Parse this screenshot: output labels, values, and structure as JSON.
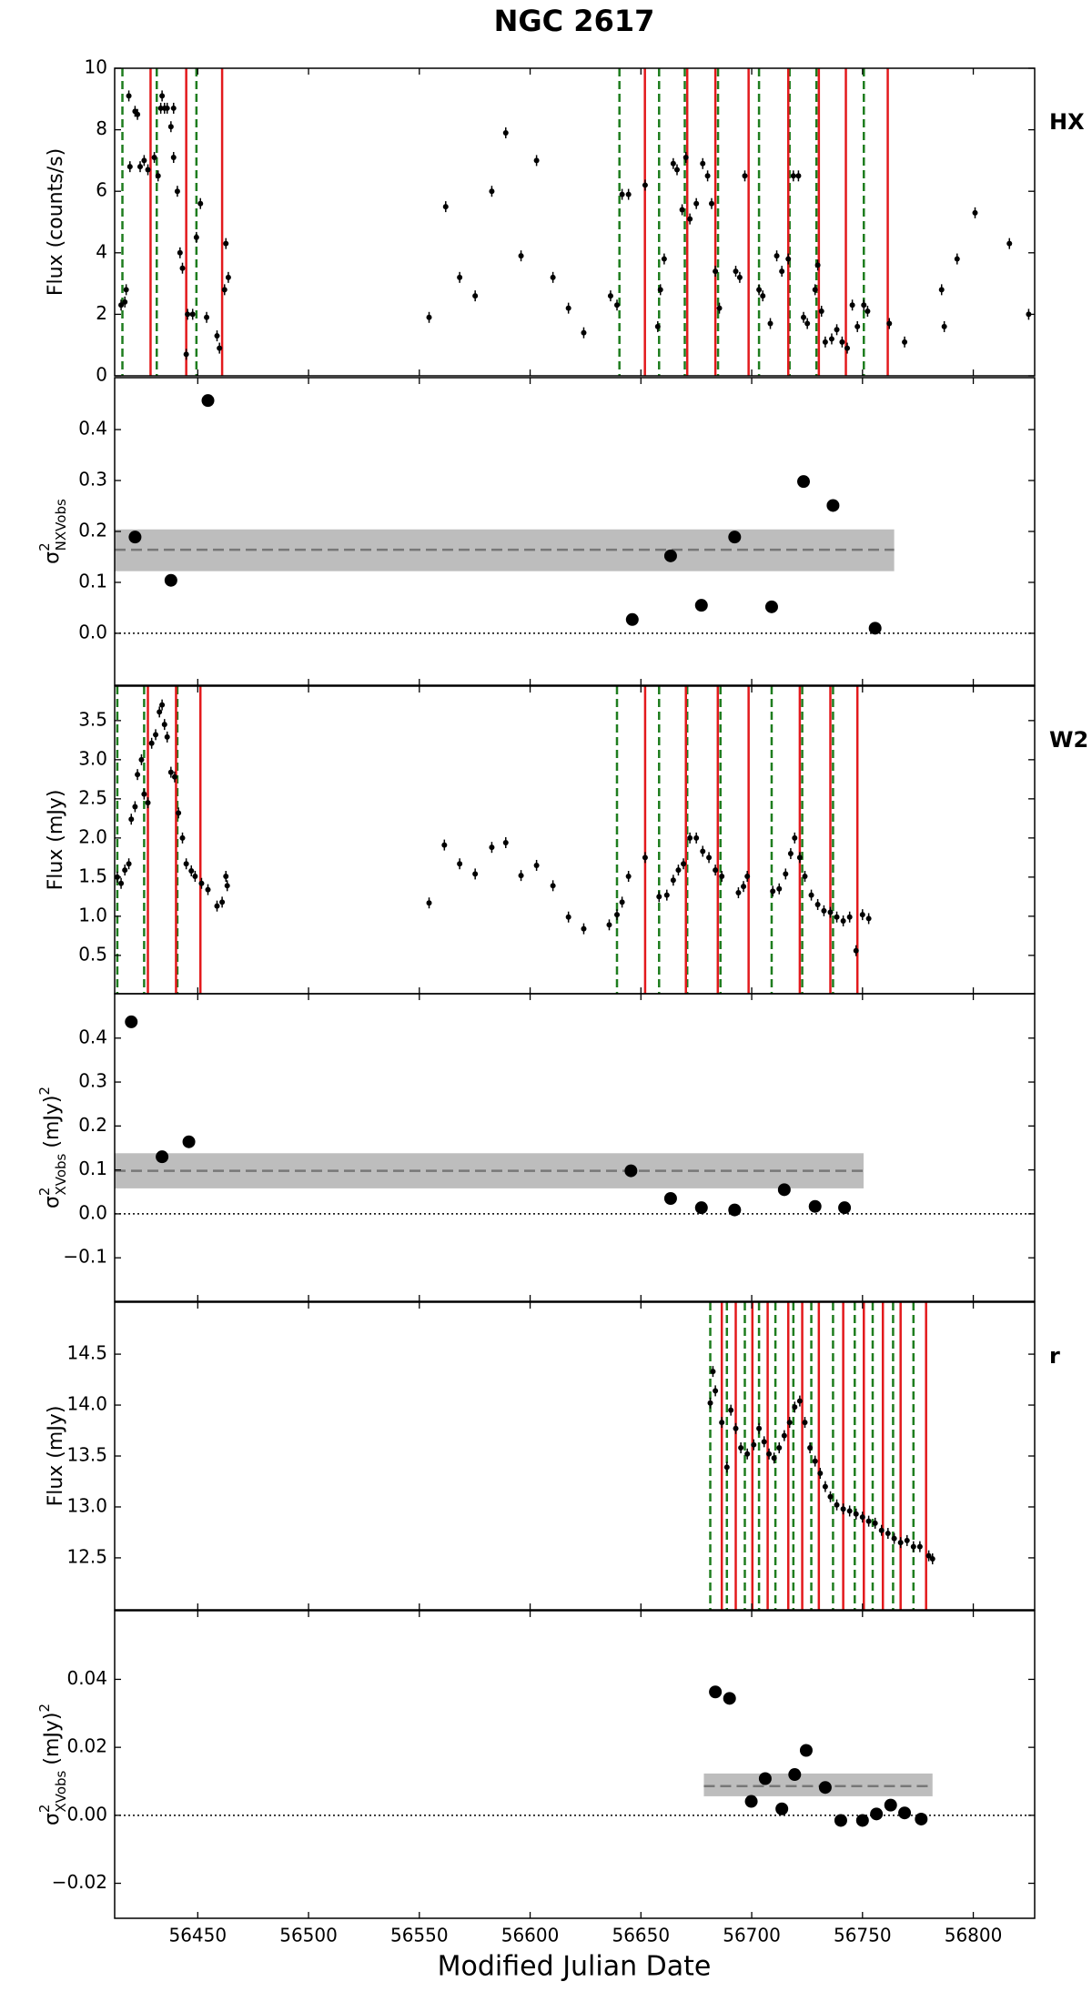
{
  "chart_data": [
    {
      "type": "scatter",
      "title": "NGC 2617",
      "label": "HX",
      "ylabel": "Flux (counts/s)",
      "xlim": [
        56412.5,
        56827.7
      ],
      "ylim": [
        0,
        10
      ],
      "yticks": [
        0,
        2,
        4,
        6,
        8,
        10
      ],
      "x": [
        56415.4,
        56417.1,
        56417.7,
        56419.4,
        56418.9,
        56421.7,
        56422.8,
        56424,
        56425.8,
        56427.5,
        56430.4,
        56432.1,
        56433.3,
        56433.9,
        56435,
        56436.2,
        56437.9,
        56439.1,
        56439.1,
        56440.8,
        56442,
        56443.1,
        56444.8,
        56445.4,
        56447.7,
        56449.4,
        56451.2,
        56454,
        56458.7,
        56459.8,
        56462.1,
        56462.7,
        56463.8,
        56554.4,
        56561.9,
        56568.2,
        56575.2,
        56582.7,
        56589,
        56595.9,
        56602.9,
        56610.3,
        56617.3,
        56624.2,
        56636.3,
        56639.2,
        56641.5,
        56644.4,
        56651.9,
        56657.6,
        56658.8,
        56660.5,
        56664.6,
        56666.3,
        56668.6,
        56670.3,
        56672.1,
        56675,
        56677.9,
        56680.1,
        56681.9,
        56683.6,
        56685.4,
        56692.8,
        56694.6,
        56696.9,
        56703.3,
        56705,
        56708.4,
        56711.3,
        56713.6,
        56716.5,
        56718.8,
        56721.1,
        56723.4,
        56725.1,
        56728.6,
        56729.8,
        56731.5,
        56733.2,
        56736.1,
        56738.4,
        56740.8,
        56743.1,
        56745.4,
        56747.7,
        56750.6,
        56752.3,
        56762.1,
        56769,
        56785.7,
        56786.9,
        56792.7,
        56800.8,
        56816.3,
        56825
      ],
      "values": [
        2.3,
        2.4,
        2.8,
        6.8,
        9.1,
        8.6,
        8.5,
        6.8,
        7.0,
        6.7,
        7.1,
        6.5,
        8.7,
        9.1,
        8.7,
        8.7,
        8.1,
        8.7,
        7.1,
        6.0,
        4.0,
        3.5,
        0.7,
        2.0,
        2.0,
        4.5,
        5.6,
        1.9,
        1.3,
        0.9,
        2.8,
        4.3,
        3.2,
        1.9,
        5.5,
        3.2,
        2.6,
        6.0,
        7.9,
        3.9,
        7.0,
        3.2,
        2.2,
        1.4,
        2.6,
        2.3,
        5.9,
        5.9,
        6.2,
        1.6,
        2.8,
        3.8,
        6.9,
        6.7,
        5.4,
        7.1,
        5.1,
        5.6,
        6.9,
        6.5,
        5.6,
        3.4,
        2.2,
        3.4,
        3.2,
        6.5,
        2.8,
        2.6,
        1.7,
        3.9,
        3.4,
        3.8,
        6.5,
        6.5,
        1.9,
        1.7,
        2.8,
        3.6,
        2.1,
        1.1,
        1.2,
        1.5,
        1.1,
        0.9,
        2.3,
        1.6,
        2.3,
        2.1,
        1.7,
        1.1,
        2.8,
        1.6,
        3.8,
        5.3,
        4.3,
        2.0
      ],
      "color": "#000000",
      "vlines": [
        {
          "color": "#1e7d1e",
          "dashed": true,
          "x": [
            56416.0,
            56431.5,
            56449.4,
            56640.3,
            56658.2,
            56669.8,
            56684.8,
            56703.3,
            56717.1,
            56729.2,
            56750.6
          ]
        },
        {
          "color": "#e3191c",
          "dashed": false,
          "x": [
            56428.7,
            56444.8,
            56461.0,
            56651.8,
            56670.9,
            56683.6,
            56698.6,
            56716.5,
            56730.3,
            56742.5,
            56761.4
          ]
        }
      ]
    },
    {
      "type": "scatter",
      "ylabel": {
        "symbol": "σ",
        "sup": "2",
        "sub": "NXVobs"
      },
      "xlim": [
        56412.5,
        56827.7
      ],
      "ylim": [
        -0.102,
        0.502
      ],
      "yticks": [
        {
          "value": 0,
          "label": "0.0"
        },
        0.1,
        0.2,
        0.3,
        0.4
      ],
      "x": [
        56421.7,
        56437.9,
        56454.6,
        56646.1,
        56663.4,
        56677.3,
        56692.3,
        56709,
        56723.4,
        56736.7,
        56755.7
      ],
      "values": [
        0.189,
        0.104,
        0.457,
        0.027,
        0.152,
        0.055,
        0.189,
        0.052,
        0.298,
        0.251,
        0.01
      ],
      "color": "#000000",
      "reference_line": 0,
      "band": {
        "center": 0.164,
        "lower": 0.122,
        "upper": 0.204,
        "xrange": [
          56412.5,
          56764.3
        ],
        "color": "#bdbdbd"
      }
    },
    {
      "type": "scatter",
      "label": "W2",
      "ylabel": "Flux (mJy)",
      "xlim": [
        56412.5,
        56827.7
      ],
      "ylim": [
        0.01,
        3.94
      ],
      "yticks": [
        0.5,
        {
          "value": 1,
          "label": "1.0"
        },
        1.5,
        {
          "value": 2,
          "label": "2.0"
        },
        2.5,
        {
          "value": 3,
          "label": "3.0"
        },
        3.5
      ],
      "x": [
        56413.7,
        56415.4,
        56417.1,
        56418.9,
        56420,
        56421.7,
        56422.8,
        56424.6,
        56425.8,
        56427.5,
        56429.2,
        56431,
        56432.7,
        56433.9,
        56435,
        56436.2,
        56437.9,
        56439.6,
        56441.3,
        56443.1,
        56444.8,
        56447.1,
        56448.8,
        56451.7,
        56454.6,
        56458.7,
        56461,
        56462.7,
        56463.3,
        56554.4,
        56561.3,
        56568.2,
        56575.2,
        56582.7,
        56589,
        56595.9,
        56602.9,
        56610.3,
        56617.3,
        56624.2,
        56635.7,
        56639.2,
        56641.5,
        56644.4,
        56651.9,
        56658.2,
        56661.7,
        56664.6,
        56666.9,
        56669.2,
        56672.1,
        56675,
        56677.9,
        56680.7,
        56683.6,
        56686.5,
        56694,
        56696.3,
        56698,
        56709.5,
        56712.4,
        56715.3,
        56717.6,
        56719.4,
        56721.7,
        56724,
        56726.9,
        56729.8,
        56732.6,
        56735.5,
        56738.4,
        56741.3,
        56744.2,
        56747.1,
        56750,
        56752.8
      ],
      "values": [
        1.5,
        1.42,
        1.59,
        1.67,
        2.24,
        2.4,
        2.81,
        3.0,
        2.56,
        2.45,
        3.21,
        3.32,
        3.61,
        3.7,
        3.45,
        3.29,
        2.84,
        2.78,
        2.32,
        2.0,
        1.67,
        1.58,
        1.51,
        1.42,
        1.34,
        1.13,
        1.18,
        1.51,
        1.39,
        1.17,
        1.91,
        1.67,
        1.54,
        1.88,
        1.94,
        1.52,
        1.65,
        1.39,
        0.99,
        0.84,
        0.89,
        1.02,
        1.18,
        1.51,
        1.75,
        1.25,
        1.27,
        1.46,
        1.59,
        1.67,
        2.0,
        2.0,
        1.83,
        1.75,
        1.59,
        1.51,
        1.3,
        1.38,
        1.51,
        1.32,
        1.35,
        1.54,
        1.8,
        2.0,
        1.75,
        1.51,
        1.27,
        1.15,
        1.07,
        1.05,
        0.99,
        0.94,
        0.99,
        0.56,
        1.02,
        0.97
      ],
      "color": "#000000",
      "vlines": [
        {
          "color": "#1e7d1e",
          "dashed": true,
          "x": [
            56413.7,
            56425.8,
            56440.8,
            56639.2,
            56658.2,
            56670.9,
            56685.9,
            56709,
            56722.8,
            56736.7
          ]
        },
        {
          "color": "#e3191c",
          "dashed": false,
          "x": [
            56427.5,
            56440.2,
            56451.2,
            56651.9,
            56670.3,
            56684.7,
            56698.6,
            56721.7,
            56735.5,
            56747.7
          ]
        }
      ]
    },
    {
      "type": "scatter",
      "ylabel": {
        "symbol": "σ",
        "sup": "2",
        "sub": "XVobs",
        "unit": "(mJy)",
        "unit_sup": "2"
      },
      "xlim": [
        56412.5,
        56827.7
      ],
      "ylim": [
        -0.199,
        0.501
      ],
      "yticks": [
        {
          "value": -0.1,
          "label": "−0.1"
        },
        {
          "value": 0,
          "label": "0.0"
        },
        0.1,
        0.2,
        0.3,
        0.4
      ],
      "x": [
        56420,
        56433.9,
        56446,
        56645.5,
        56663.4,
        56677.3,
        56692.3,
        56714.7,
        56728.6,
        56741.9
      ],
      "values": [
        0.437,
        0.13,
        0.164,
        0.098,
        0.035,
        0.014,
        0.009,
        0.055,
        0.017,
        0.014
      ],
      "color": "#000000",
      "reference_line": 0,
      "band": {
        "center": 0.098,
        "lower": 0.058,
        "upper": 0.138,
        "xrange": [
          56412.5,
          56750.5
        ],
        "color": "#bdbdbd"
      }
    },
    {
      "type": "scatter",
      "label": "r",
      "ylabel": "Flux (mJy)",
      "xlim": [
        56412.5,
        56827.7
      ],
      "ylim": [
        11.99,
        15.01
      ],
      "yticks": [
        12.5,
        {
          "value": 13,
          "label": "13.0"
        },
        13.5,
        {
          "value": 14,
          "label": "14.0"
        },
        14.5
      ],
      "x": [
        56681.3,
        56682.5,
        56683.6,
        56686.5,
        56688.8,
        56690.6,
        56692.8,
        56695.1,
        56698,
        56700.9,
        56703.3,
        56705.6,
        56707.8,
        56710.1,
        56712.4,
        56714.7,
        56717.1,
        56719.4,
        56721.7,
        56724,
        56726.3,
        56728.6,
        56730.9,
        56733.2,
        56735.5,
        56738.4,
        56741.3,
        56744.2,
        56747.1,
        56750,
        56752.8,
        56755.7,
        56758.6,
        56761.5,
        56764.3,
        56767.2,
        56770.1,
        56773,
        56775.9,
        56779.9,
        56781.6
      ],
      "values": [
        14.02,
        14.33,
        14.14,
        13.83,
        13.39,
        13.95,
        13.77,
        13.58,
        13.52,
        13.61,
        13.77,
        13.64,
        13.52,
        13.48,
        13.58,
        13.7,
        13.83,
        13.98,
        14.04,
        13.83,
        13.58,
        13.45,
        13.33,
        13.2,
        13.1,
        13.02,
        12.98,
        12.96,
        12.93,
        12.9,
        12.86,
        12.84,
        12.77,
        12.74,
        12.69,
        12.65,
        12.67,
        12.61,
        12.61,
        12.52,
        12.49
      ],
      "color": "#000000",
      "vlines": [
        {
          "color": "#1e7d1e",
          "dashed": true,
          "x": [
            56681.3,
            56688.8,
            56696.9,
            56703.3,
            56710.7,
            56718.8,
            56726.9,
            56736.7,
            56746.5,
            56754.6,
            56763.8,
            56773
          ]
        },
        {
          "color": "#e3191c",
          "dashed": false,
          "x": [
            56686.5,
            56692.8,
            56700.3,
            56707.2,
            56716.5,
            56722.8,
            56730.3,
            56741.3,
            56750.6,
            56759.2,
            56767.2,
            56778.7
          ]
        }
      ]
    },
    {
      "type": "scatter",
      "ylabel": {
        "symbol": "σ",
        "sup": "2",
        "sub": "XVobs",
        "unit": "(mJy)",
        "unit_sup": "2"
      },
      "xlabel": "Modified Julian Date",
      "xlim": [
        56412.5,
        56827.7
      ],
      "xticks": [
        56450,
        56500,
        56550,
        56600,
        56650,
        56700,
        56750,
        56800
      ],
      "ylim": [
        -0.0303,
        0.0602
      ],
      "yticks": [
        {
          "value": -0.02,
          "label": "−0.02"
        },
        {
          "value": 0,
          "label": "0.00"
        },
        {
          "value": 0.02,
          "label": "0.02"
        },
        {
          "value": 0.04,
          "label": "0.04"
        }
      ],
      "x": [
        56683.6,
        56690,
        56699.8,
        56706.1,
        56713.6,
        56719.4,
        56724.6,
        56733.2,
        56740.2,
        56750,
        56756.3,
        56762.7,
        56769,
        56776.5
      ],
      "values": [
        0.0363,
        0.0344,
        0.0041,
        0.0108,
        0.0019,
        0.012,
        0.0191,
        0.0082,
        -0.0015,
        -0.0015,
        0.0004,
        0.003,
        0.0007,
        -0.0011
      ],
      "color": "#000000",
      "reference_line": 0,
      "band": {
        "center": 0.0086,
        "lower": 0.0056,
        "upper": 0.0123,
        "xrange": [
          56678.4,
          56781.6
        ],
        "color": "#bdbdbd"
      }
    }
  ]
}
